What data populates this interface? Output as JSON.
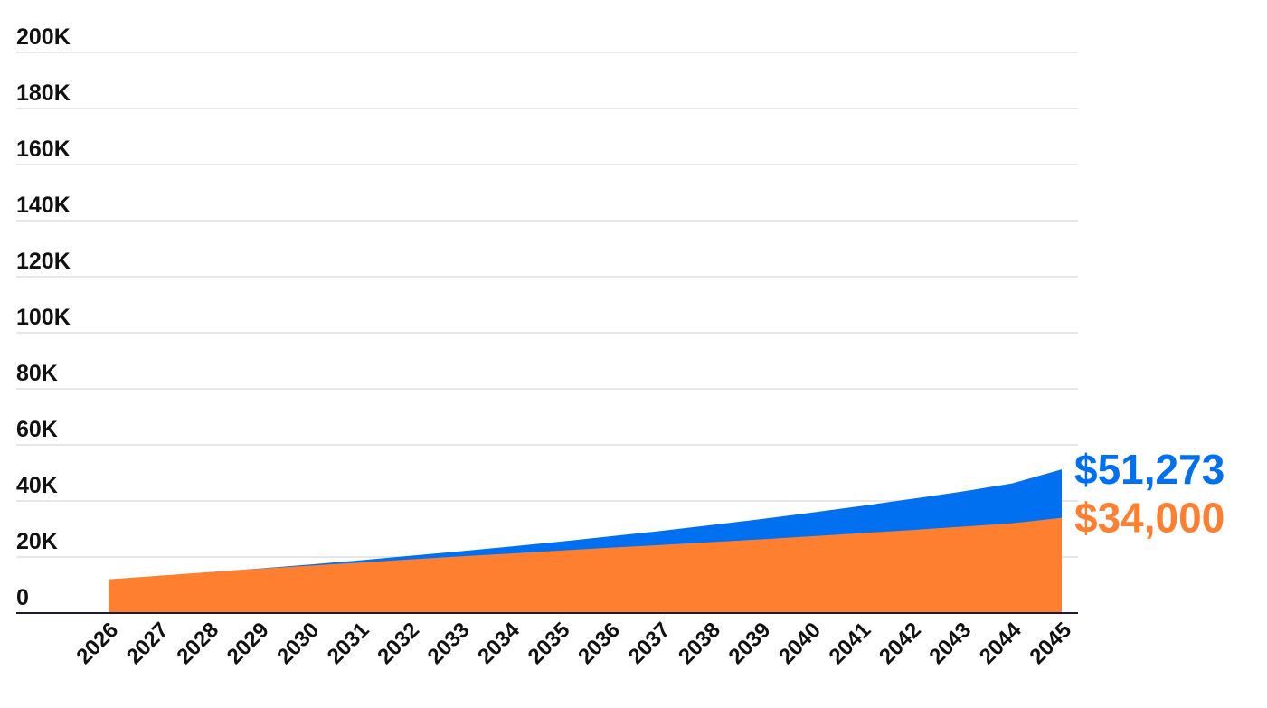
{
  "chart_data": {
    "type": "area",
    "title": "",
    "xlabel": "",
    "ylabel": "",
    "x": [
      2026,
      2027,
      2028,
      2029,
      2030,
      2031,
      2032,
      2033,
      2034,
      2035,
      2036,
      2037,
      2038,
      2039,
      2040,
      2041,
      2042,
      2043,
      2044,
      2045
    ],
    "x_tick_labels": [
      "2026",
      "2027",
      "2028",
      "2029",
      "2030",
      "2031",
      "2032",
      "2033",
      "2034",
      "2035",
      "2036",
      "2037",
      "2038",
      "2039",
      "2040",
      "2041",
      "2042",
      "2043",
      "2044",
      "2045"
    ],
    "y_tick_values": [
      0,
      20000,
      40000,
      60000,
      80000,
      100000,
      120000,
      140000,
      160000,
      180000,
      200000
    ],
    "y_tick_labels": [
      "0",
      "20K",
      "40K",
      "60K",
      "80K",
      "100K",
      "120K",
      "140K",
      "160K",
      "180K",
      "200K"
    ],
    "ylim": [
      0,
      200000
    ],
    "grid": true,
    "legend": "none",
    "series": [
      {
        "color": "#0070f0",
        "end_label": "$51,273",
        "values": [
          12000,
          13200,
          14500,
          15900,
          17300,
          18800,
          20400,
          22000,
          23700,
          25500,
          27400,
          29300,
          31400,
          33500,
          35800,
          38200,
          40700,
          43300,
          46200,
          51273
        ]
      },
      {
        "color": "#ff7f30",
        "end_label": "$34,000",
        "values": [
          12000,
          13300,
          14600,
          15800,
          16900,
          18000,
          19100,
          20200,
          21200,
          22300,
          23300,
          24300,
          25300,
          26300,
          27400,
          28500,
          29600,
          30800,
          32000,
          34000
        ]
      }
    ]
  }
}
